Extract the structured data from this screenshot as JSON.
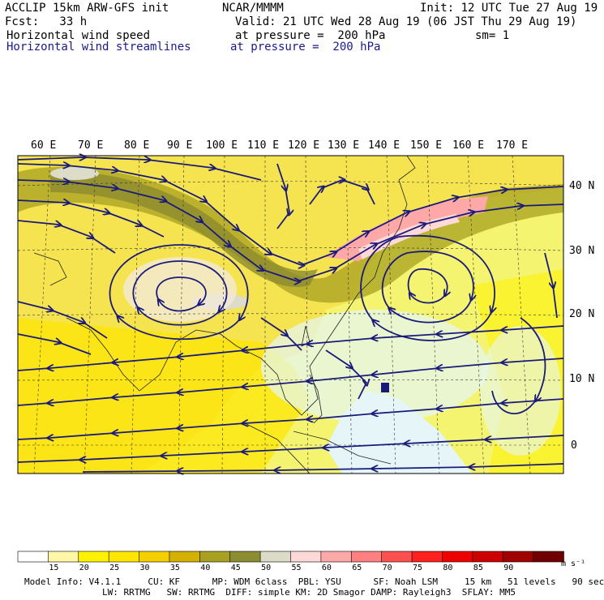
{
  "header": {
    "model": "ACCLIP 15km ARW-GFS init",
    "center": "NCAR/MMMM",
    "init": "Init: 12 UTC Tue 27 Aug 19",
    "fcst": "Fcst:   33 h",
    "valid": "Valid: 21 UTC Wed 28 Aug 19 (06 JST Thu 29 Aug 19)",
    "field1": "Horizontal wind speed",
    "field1_level": "at pressure =  200 hPa",
    "sm": "sm= 1",
    "field2": "Horizontal wind streamlines",
    "field2_level": "at pressure =  200 hPa"
  },
  "map": {
    "lon_labels": [
      "60 E",
      "70 E",
      "80 E",
      "90 E",
      "100 E",
      "110 E",
      "120 E",
      "130 E",
      "140 E",
      "150 E",
      "160 E",
      "170 E"
    ],
    "lat_labels": [
      "40 N",
      "30 N",
      "20 N",
      "10 N",
      "0"
    ],
    "streamline_color": "#1a1a7a",
    "land_color": "#e9d2b0",
    "ocean_color": "#e6f6f8"
  },
  "colorbar": {
    "labels": [
      "15",
      "20",
      "25",
      "30",
      "35",
      "40",
      "45",
      "50",
      "55",
      "60",
      "65",
      "70",
      "75",
      "80",
      "85",
      "90"
    ],
    "unit": "m s⁻¹",
    "colors": [
      "#ffffff",
      "#fff7a8",
      "#fff200",
      "#ffe600",
      "#f5d000",
      "#d4b000",
      "#a8a020",
      "#8c8c30",
      "#dcdcc8",
      "#ffd8d8",
      "#ffa8a8",
      "#ff8080",
      "#ff5050",
      "#ff2020",
      "#ee0000",
      "#cc0000",
      "#a00000",
      "#700000"
    ]
  },
  "footer": {
    "line1": "Model Info: V4.1.1     CU: KF      MP: WDM 6class  PBL: YSU      SF: Noah LSM     15 km   51 levels   90 sec",
    "line2": "LW: RRTMG   SW: RRTMG  DIFF: simple KM: 2D Smagor DAMP: Rayleigh3  SFLAY: MM5"
  }
}
